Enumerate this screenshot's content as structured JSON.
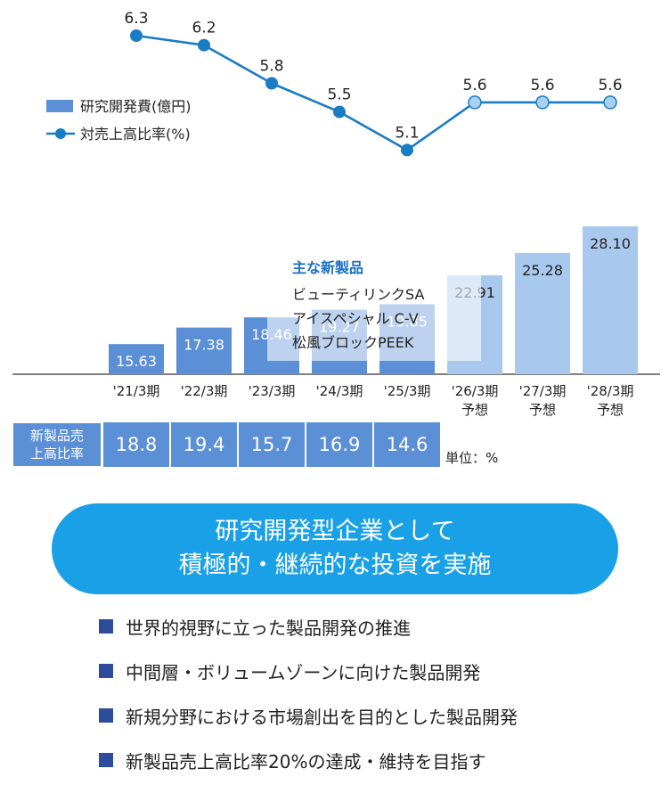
{
  "chart_data": {
    "type": "bar",
    "categories": [
      "'21/3期",
      "'22/3期",
      "'23/3期",
      "'24/3期",
      "'25/3期",
      "'26/3期",
      "'27/3期",
      "'28/3期"
    ],
    "category_sublabels": [
      "",
      "",
      "",
      "",
      "",
      "予想",
      "予想",
      "予想"
    ],
    "series": [
      {
        "name": "研究開発費(億円)",
        "type": "bar",
        "values": [
          15.63,
          17.38,
          18.46,
          19.27,
          19.85,
          22.91,
          25.28,
          28.1
        ],
        "value_labels": [
          "15.63",
          "17.38",
          "18.46",
          "19.27",
          "19.85",
          "22.91",
          "25.28",
          "28.10"
        ],
        "forecast_from_index": 5,
        "color": "#5b8fd6",
        "forecast_color": "#a9c8ee"
      },
      {
        "name": "対売上高比率(%)",
        "type": "line",
        "values": [
          6.3,
          6.2,
          5.8,
          5.5,
          5.1,
          5.6,
          5.6,
          5.6
        ],
        "value_labels": [
          "6.3",
          "6.2",
          "5.8",
          "5.5",
          "5.1",
          "5.6",
          "5.6",
          "5.6"
        ],
        "forecast_from_index": 5,
        "color": "#1a7cc4",
        "forecast_color": "#a9d0ef"
      }
    ],
    "legend_position": "top-left",
    "grid": false,
    "annotation": {
      "title": "主な新製品",
      "items": [
        "ビューティリンクSA",
        "アイスペシャル C-V",
        "松風ブロックPEEK"
      ]
    }
  },
  "ratio_table": {
    "header_line1": "新製品売",
    "header_line2": "上高比率",
    "values": [
      "18.8",
      "19.4",
      "15.7",
      "16.9",
      "14.6"
    ],
    "unit": "単位：%"
  },
  "banner": {
    "line1": "研究開発型企業として",
    "line2": "積極的・継続的な投資を実施"
  },
  "bullets": [
    "世界的視野に立った製品開発の推進",
    "中間層・ボリュームゾーンに向けた製品開発",
    "新規分野における市場創出を目的とした製品開発",
    "新製品売上高比率20%の達成・維持を目指す"
  ],
  "colors": {
    "bar": "#5b8fd6",
    "bar_forecast": "#a9c8ee",
    "line": "#1a7cc4",
    "banner": "#1aa0e6",
    "bullet_square": "#2d4c9c"
  }
}
